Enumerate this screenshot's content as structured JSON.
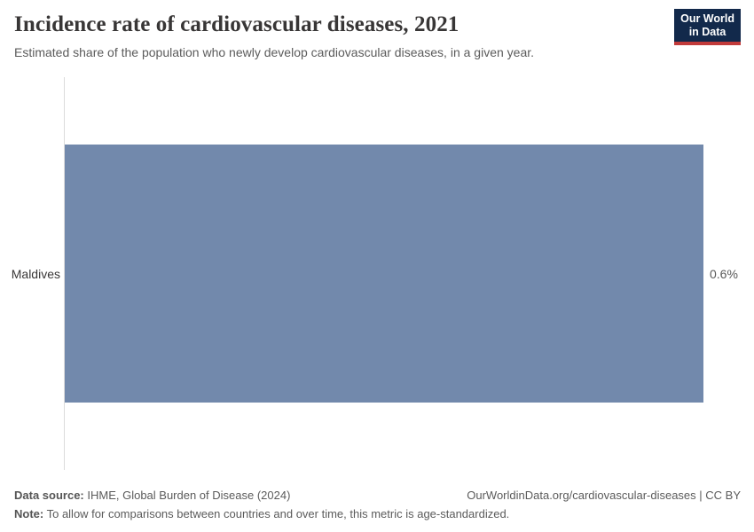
{
  "header": {
    "title": "Incidence rate of cardiovascular diseases, 2021",
    "subtitle": "Estimated share of the population who newly develop cardiovascular diseases, in a given year.",
    "logo": {
      "line1": "Our World",
      "line2": "in Data"
    }
  },
  "chart_data": {
    "type": "bar",
    "orientation": "horizontal",
    "categories": [
      "Maldives"
    ],
    "values": [
      0.6
    ],
    "value_labels": [
      "0.6%"
    ],
    "xlim": [
      0,
      0.6
    ],
    "title": "Incidence rate of cardiovascular diseases, 2021",
    "xlabel": "",
    "ylabel": "",
    "grid": false,
    "legend": false,
    "bar_color": "#7289ac"
  },
  "footer": {
    "datasource_label": "Data source:",
    "datasource_text": " IHME, Global Burden of Disease (2024)",
    "note_label": "Note:",
    "note_text": " To allow for comparisons between countries and over time, this metric is age-standardized.",
    "link": "OurWorldinData.org/cardiovascular-diseases | CC BY"
  },
  "colors": {
    "bar": "#7289ac",
    "axis_line": "#dcdcdc",
    "title_text": "#383636",
    "body_text": "#5b5b5b",
    "logo_bg": "#12294b",
    "logo_accent": "#c13a3a"
  }
}
